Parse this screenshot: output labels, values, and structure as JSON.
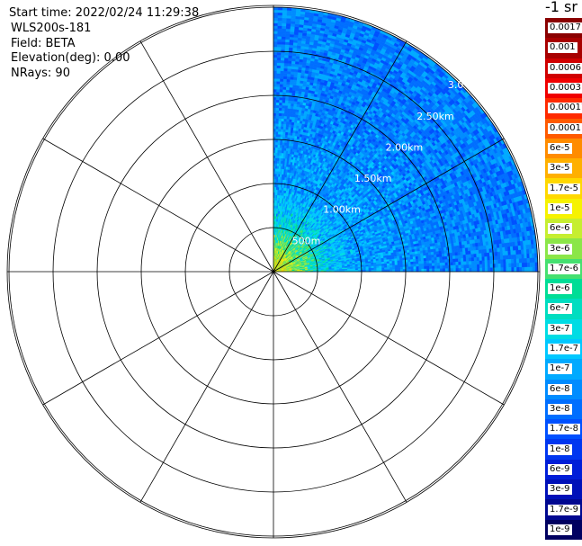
{
  "header": {
    "start_time": "Start time: 2022/02/24 11:29:38",
    "instrument": "WLS200s-181",
    "field": "Field: BETA",
    "elevation": "Elevation(deg): 0.00",
    "nrays": "NRays: 90"
  },
  "colorbar": {
    "title": "-1 sr",
    "levels": [
      {
        "label": "0.0017",
        "color": "#8a0000"
      },
      {
        "label": "0.001",
        "color": "#a80000"
      },
      {
        "label": "0.0006",
        "color": "#d00000"
      },
      {
        "label": "0.0003",
        "color": "#f00000"
      },
      {
        "label": "0.00017",
        "color": "#ff2a00"
      },
      {
        "label": "0.0001",
        "color": "#ff5a00"
      },
      {
        "label": "6e-5",
        "color": "#ff8c00"
      },
      {
        "label": "3e-5",
        "color": "#ffb000"
      },
      {
        "label": "1.7e-5",
        "color": "#ffd800"
      },
      {
        "label": "1e-5",
        "color": "#f6f200"
      },
      {
        "label": "6e-6",
        "color": "#c6ee30"
      },
      {
        "label": "3e-6",
        "color": "#8be648"
      },
      {
        "label": "1.7e-6",
        "color": "#45e070"
      },
      {
        "label": "1e-6",
        "color": "#00dd96"
      },
      {
        "label": "6e-7",
        "color": "#00ddc0"
      },
      {
        "label": "3e-7",
        "color": "#00dce4"
      },
      {
        "label": "1.7e-7",
        "color": "#00c8ff"
      },
      {
        "label": "1e-7",
        "color": "#00aaff"
      },
      {
        "label": "6e-8",
        "color": "#008cff"
      },
      {
        "label": "3e-8",
        "color": "#006eff"
      },
      {
        "label": "1.7e-8",
        "color": "#0050ff"
      },
      {
        "label": "1e-8",
        "color": "#0036f0"
      },
      {
        "label": "6e-9",
        "color": "#001ed8"
      },
      {
        "label": "3e-9",
        "color": "#0010b8"
      },
      {
        "label": "1.7e-9",
        "color": "#000890"
      },
      {
        "label": "1e-9",
        "color": "#000060"
      }
    ]
  },
  "chart_data": {
    "type": "heatmap",
    "projection": "polar (PPI)",
    "field": "BETA",
    "units": "-1 sr",
    "rays": 90,
    "azimuth_sector_deg": [
      0,
      90
    ],
    "max_range_km": 3.0,
    "range_rings": [
      {
        "range_km": 0.5,
        "label": "500m"
      },
      {
        "range_km": 1.0,
        "label": "1.00km"
      },
      {
        "range_km": 1.5,
        "label": "1.50km"
      },
      {
        "range_km": 2.0,
        "label": "2.00km"
      },
      {
        "range_km": 2.5,
        "label": "2.50km"
      },
      {
        "range_km": 3.0,
        "label": "3.0"
      }
    ],
    "spokes_deg": [
      0,
      30,
      60,
      90,
      120,
      150,
      180,
      210,
      240,
      270,
      300,
      330
    ],
    "radial_profile": [
      {
        "range_km": 0.1,
        "value": "1e-5"
      },
      {
        "range_km": 0.3,
        "value": "3e-6"
      },
      {
        "range_km": 0.6,
        "value": "3e-7"
      },
      {
        "range_km": 1.0,
        "value": "1e-7"
      },
      {
        "range_km": 2.0,
        "value": "6e-8"
      },
      {
        "range_km": 3.0,
        "value": "6e-8"
      }
    ]
  }
}
